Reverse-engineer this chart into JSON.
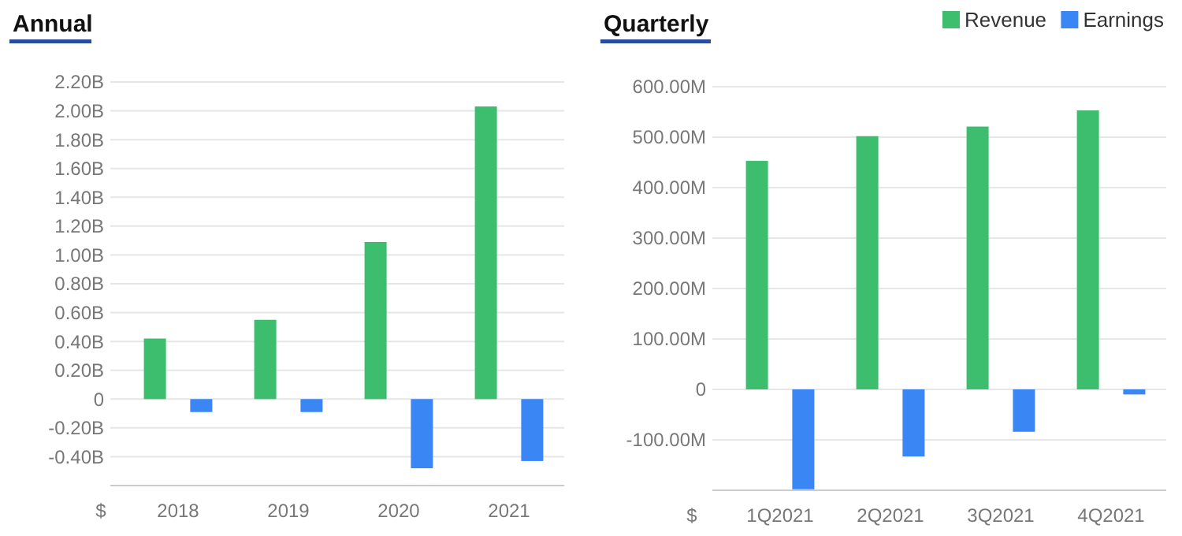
{
  "chart_data": [
    {
      "type": "bar",
      "title": "Annual",
      "ylabel": "$",
      "categories": [
        "2018",
        "2019",
        "2020",
        "2021"
      ],
      "series": [
        {
          "color": "#3dbd6e",
          "values": [
            0.42,
            0.55,
            1.09,
            2.03
          ]
        },
        {
          "color": "#3a86f5",
          "values": [
            -0.09,
            -0.09,
            -0.48,
            -0.43
          ]
        }
      ],
      "ylim": [
        -0.6,
        2.2
      ],
      "yticks": [
        {
          "value": -0.6,
          "label": null
        },
        {
          "value": -0.4,
          "label": "-0.40B"
        },
        {
          "value": -0.2,
          "label": "-0.20B"
        },
        0,
        {
          "value": 0.2,
          "label": "0.20B"
        },
        {
          "value": 0.4,
          "label": "0.40B"
        },
        {
          "value": 0.6,
          "label": "0.60B"
        },
        {
          "value": 0.8,
          "label": "0.80B"
        },
        {
          "value": 1.0,
          "label": "1.00B"
        },
        {
          "value": 1.2,
          "label": "1.20B"
        },
        {
          "value": 1.4,
          "label": "1.40B"
        },
        {
          "value": 1.6,
          "label": "1.60B"
        },
        {
          "value": 1.8,
          "label": "1.80B"
        },
        {
          "value": 2.0,
          "label": "2.00B"
        },
        {
          "value": 2.2,
          "label": "2.20B"
        }
      ],
      "grid": "y"
    },
    {
      "type": "bar",
      "title": "Quarterly",
      "ylabel": "$",
      "categories": [
        "1Q2021",
        "2Q2021",
        "3Q2021",
        "4Q2021"
      ],
      "series": [
        {
          "name": "Revenue",
          "color": "#3dbd6e",
          "values": [
            453,
            502,
            521,
            553
          ]
        },
        {
          "name": "Earnings",
          "color": "#3a86f5",
          "values": [
            -198,
            -133,
            -84,
            -10
          ]
        }
      ],
      "ylim": [
        -200,
        600
      ],
      "yticks": [
        {
          "value": -200,
          "label": null
        },
        {
          "value": -100,
          "label": "-100.00M"
        },
        0,
        {
          "value": 100,
          "label": "100.00M"
        },
        {
          "value": 200,
          "label": "200.00M"
        },
        {
          "value": 300,
          "label": "300.00M"
        },
        {
          "value": 400,
          "label": "400.00M"
        },
        {
          "value": 500,
          "label": "500.00M"
        },
        {
          "value": 600,
          "label": "600.00M"
        }
      ],
      "grid": "y",
      "legend": "top right"
    }
  ]
}
